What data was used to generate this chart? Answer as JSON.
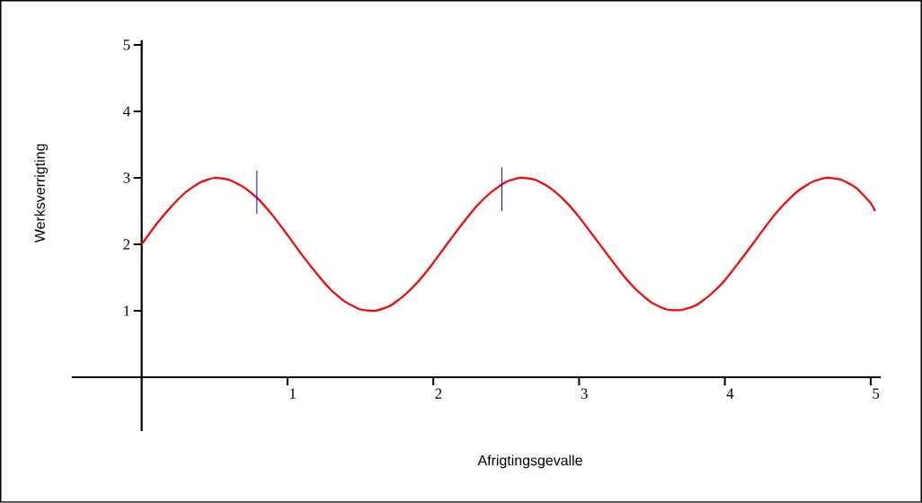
{
  "chart_data": {
    "type": "line",
    "xlabel": "Afrigtingsgevalle",
    "ylabel": "Werksverrigting",
    "xlim": [
      -0.48,
      5.07
    ],
    "ylim": [
      -0.81,
      5.07
    ],
    "xticks": [
      1,
      2,
      3,
      4,
      5
    ],
    "yticks": [
      1,
      2,
      3,
      4,
      5
    ],
    "grid": false,
    "series": [
      {
        "color": "#ff0000",
        "x": [
          0,
          0.1,
          0.2,
          0.3,
          0.4,
          0.5,
          0.6,
          0.7,
          0.8,
          0.9,
          1.0,
          1.1,
          1.2,
          1.3,
          1.4,
          1.5,
          1.6,
          1.7,
          1.8,
          1.9,
          2.0,
          2.1,
          2.2,
          2.3,
          2.4,
          2.5,
          2.6,
          2.7,
          2.8,
          2.9,
          3.0,
          3.1,
          3.2,
          3.3,
          3.4,
          3.5,
          3.6,
          3.7,
          3.8,
          3.9,
          4.0,
          4.1,
          4.2,
          4.3,
          4.4,
          4.5,
          4.6,
          4.7,
          4.8,
          4.9,
          5.0,
          5.03
        ],
        "values": [
          2.0,
          2.3,
          2.56,
          2.78,
          2.93,
          3.0,
          2.97,
          2.86,
          2.68,
          2.43,
          2.14,
          1.84,
          1.56,
          1.31,
          1.13,
          1.02,
          1.0,
          1.07,
          1.23,
          1.45,
          1.72,
          2.02,
          2.31,
          2.58,
          2.79,
          2.94,
          3.0,
          2.97,
          2.85,
          2.66,
          2.41,
          2.12,
          1.83,
          1.54,
          1.3,
          1.12,
          1.02,
          1.01,
          1.08,
          1.24,
          1.46,
          1.74,
          2.03,
          2.33,
          2.59,
          2.8,
          2.94,
          3.0,
          2.97,
          2.85,
          2.62,
          2.5
        ]
      },
      {
        "color": "#0000ff",
        "x": [
          0.79,
          0.79
        ],
        "values": [
          2.46,
          3.11
        ]
      },
      {
        "color": "#0000ff",
        "x": [
          2.47,
          2.47
        ],
        "values": [
          2.5,
          3.16
        ]
      }
    ]
  }
}
